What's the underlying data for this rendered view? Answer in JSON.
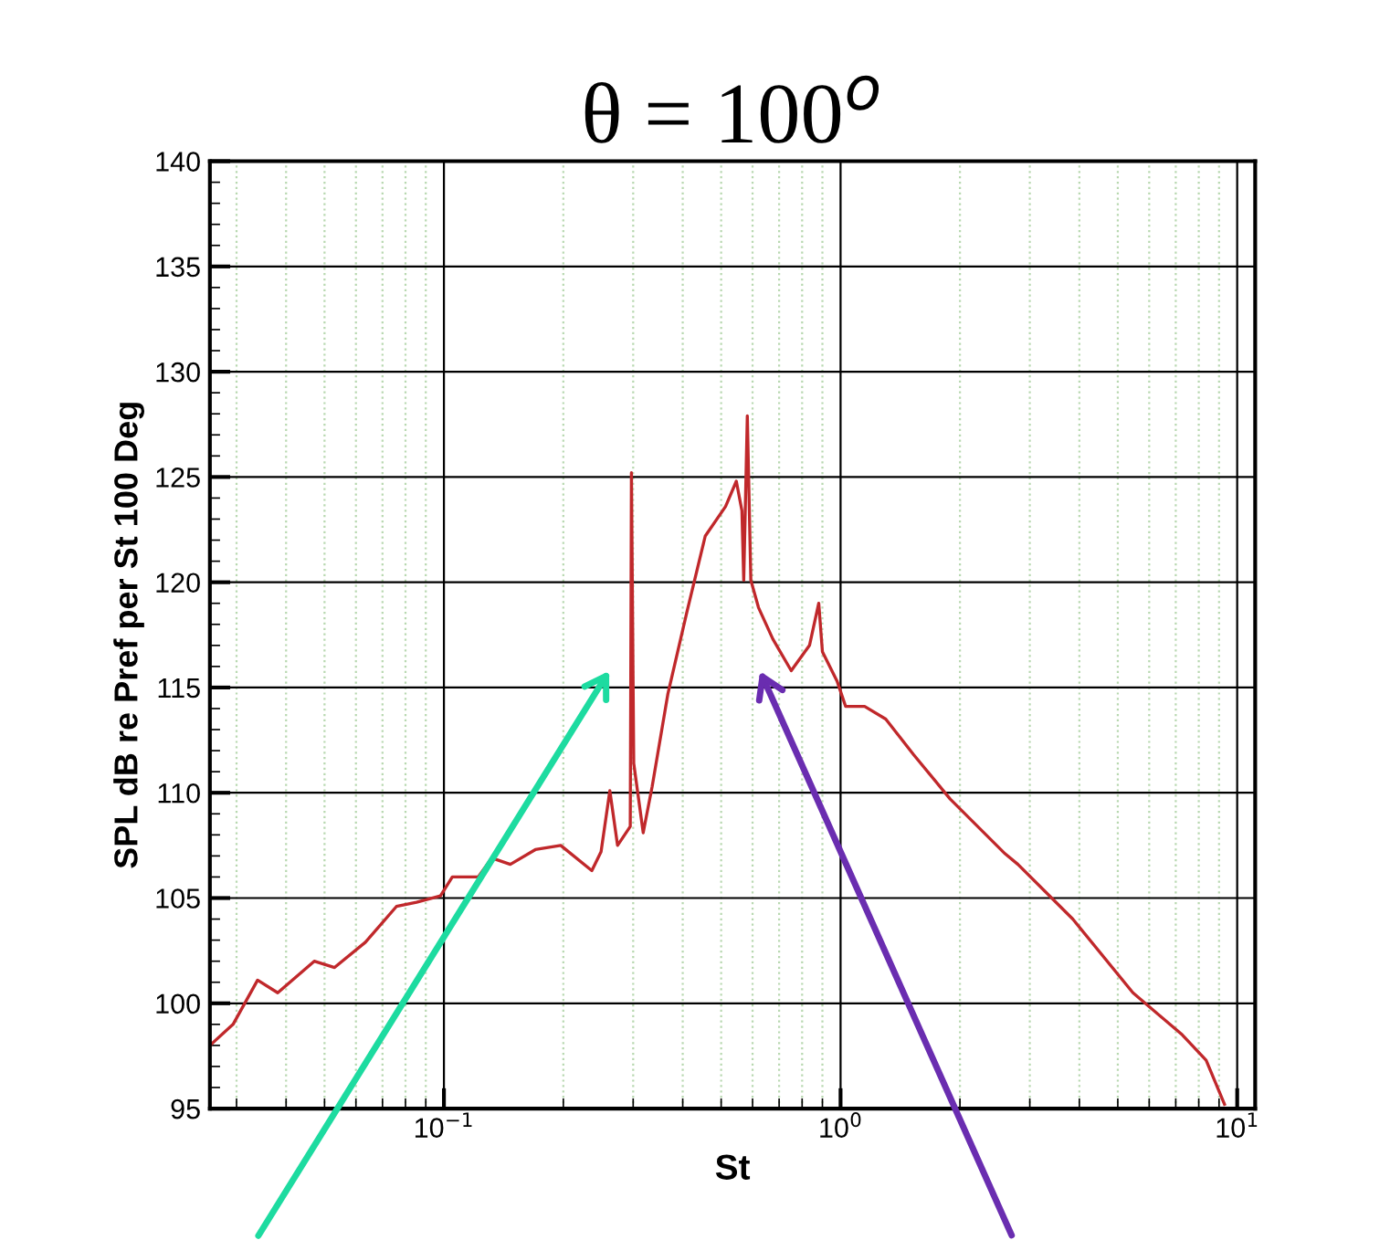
{
  "chart_data": {
    "type": "line",
    "title": "θ = 100$^{o}$",
    "xlabel": "St",
    "ylabel": "SPL dB re Pref per St 100 Deg",
    "log": "x",
    "grid": true,
    "marker": "none",
    "line_style": "solid",
    "xlim": [
      0.0257,
      11.1
    ],
    "ylim": [
      95,
      140
    ],
    "xticks": [
      {
        "value": 0.1,
        "label": "10$^{−1}$"
      },
      {
        "value": 1,
        "label": "10$^{0}$"
      },
      {
        "value": 10,
        "label": "10$^{1}$"
      }
    ],
    "yticks": [
      95,
      100,
      105,
      110,
      115,
      120,
      125,
      130,
      135,
      140
    ],
    "x": [
      0.0257,
      0.0294,
      0.0339,
      0.0381,
      0.0471,
      0.053,
      0.0634,
      0.0759,
      0.0853,
      0.098,
      0.105,
      0.122,
      0.132,
      0.147,
      0.17,
      0.197,
      0.236,
      0.249,
      0.262,
      0.274,
      0.295,
      0.297,
      0.301,
      0.318,
      0.335,
      0.367,
      0.41,
      0.456,
      0.513,
      0.546,
      0.564,
      0.57,
      0.582,
      0.594,
      0.621,
      0.675,
      0.751,
      0.835,
      0.881,
      0.9,
      0.98,
      1.03,
      1.15,
      1.3,
      1.53,
      1.89,
      2.6,
      2.8,
      3.85,
      5.46,
      7.27,
      8.35,
      9.29
    ],
    "series": [
      {
        "color": "#c0282b",
        "values": [
          98.0,
          99.0,
          101.1,
          100.5,
          102.0,
          101.7,
          102.9,
          104.6,
          104.8,
          105.1,
          106.0,
          106.0,
          106.9,
          106.6,
          107.3,
          107.5,
          106.3,
          107.2,
          110.1,
          107.5,
          108.4,
          125.2,
          111.4,
          108.1,
          110.3,
          114.7,
          118.6,
          122.2,
          123.6,
          124.8,
          123.4,
          120.1,
          127.9,
          120.1,
          118.8,
          117.3,
          115.8,
          117.0,
          119.0,
          116.7,
          115.3,
          114.1,
          114.1,
          113.5,
          111.8,
          109.7,
          107.1,
          106.6,
          104.0,
          100.5,
          98.5,
          97.3,
          95.2
        ]
      }
    ]
  }
}
